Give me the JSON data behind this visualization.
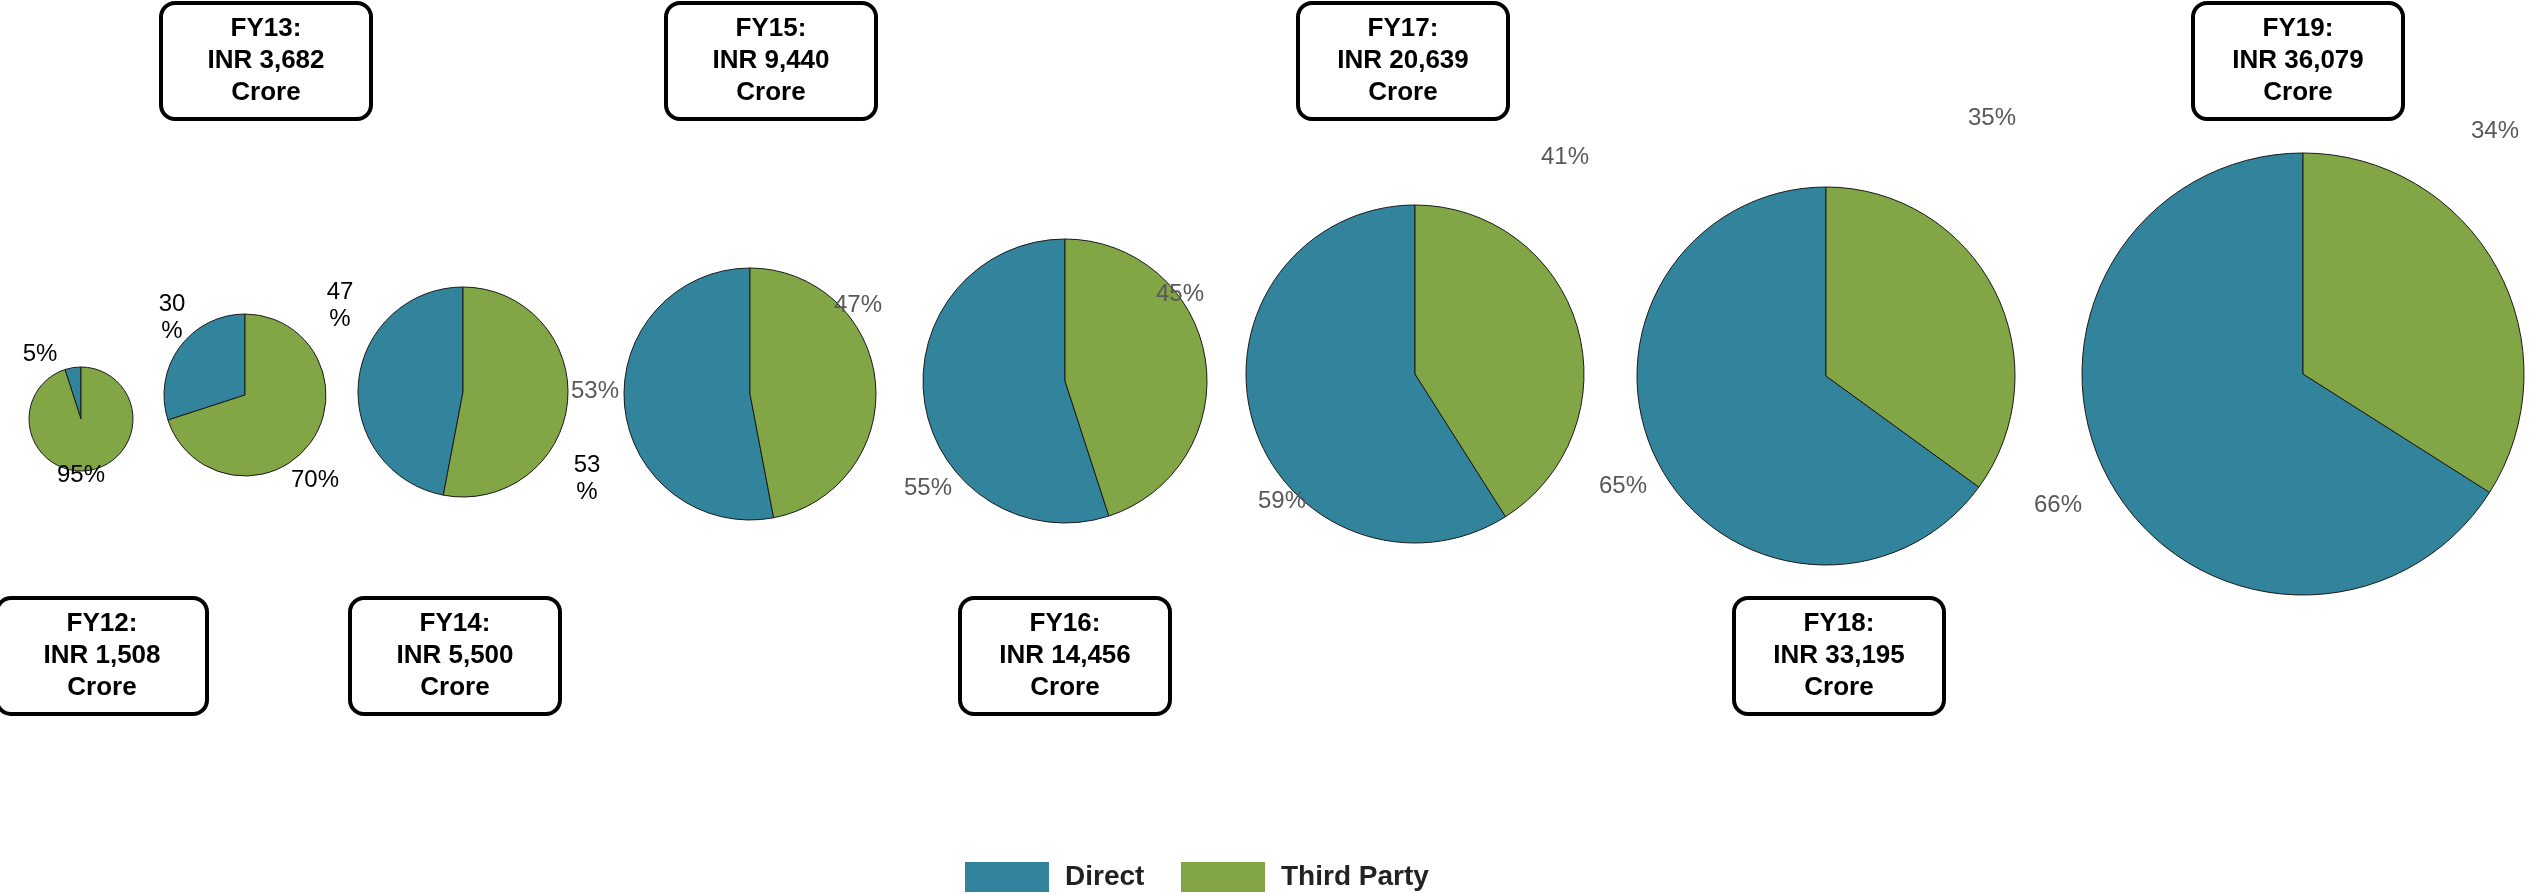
{
  "chart_data": [
    {
      "type": "pie",
      "title": "FY12:\nINR 1,508\nCrore",
      "categories": [
        "Direct",
        "Third Party"
      ],
      "values": [
        5,
        95
      ],
      "value_labels": [
        "5%",
        "95%"
      ],
      "colors": [
        "#31849b",
        "#82a646"
      ],
      "legend": "bottom"
    },
    {
      "type": "pie",
      "title": "FY13:\nINR 3,682\nCrore",
      "values": [
        30,
        70
      ],
      "value_labels": [
        "30\n%",
        "70%"
      ],
      "colors": [
        "#31849b",
        "#82a646"
      ]
    },
    {
      "type": "pie",
      "title": "FY14:\nINR 5,500\nCrore",
      "values": [
        47,
        53
      ],
      "value_labels": [
        "47\n%",
        "53\n%"
      ],
      "colors": [
        "#31849b",
        "#82a646"
      ]
    },
    {
      "type": "pie",
      "title": "FY15:\nINR 9,440\nCrore",
      "values": [
        53,
        47
      ],
      "value_labels": [
        "53%",
        "47%"
      ],
      "colors": [
        "#31849b",
        "#82a646"
      ]
    },
    {
      "type": "pie",
      "title": "FY16:\nINR 14,456\nCrore",
      "values": [
        55,
        45
      ],
      "value_labels": [
        "55%",
        "45%"
      ],
      "colors": [
        "#31849b",
        "#82a646"
      ]
    },
    {
      "type": "pie",
      "title": "FY17:\nINR 20,639\nCrore",
      "values": [
        59,
        41
      ],
      "value_labels": [
        "59%",
        "41%"
      ],
      "colors": [
        "#31849b",
        "#82a646"
      ]
    },
    {
      "type": "pie",
      "title": "FY18:\nINR 33,195\nCrore",
      "values": [
        65,
        35
      ],
      "value_labels": [
        "65%",
        "35%"
      ],
      "colors": [
        "#31849b",
        "#82a646"
      ]
    },
    {
      "type": "pie",
      "title": "FY19:\nINR 36,079\nCrore",
      "values": [
        66,
        34
      ],
      "value_labels": [
        "66%",
        "34%"
      ],
      "colors": [
        "#31849b",
        "#82a646"
      ]
    }
  ]
}
